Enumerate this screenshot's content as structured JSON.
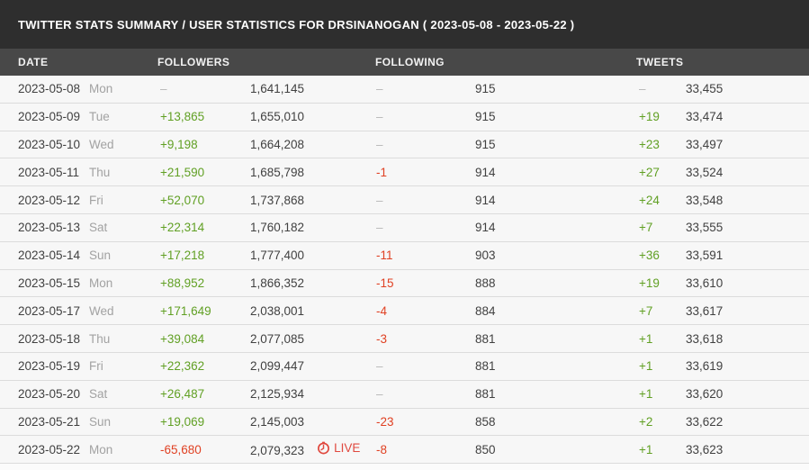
{
  "header": {
    "title": "TWITTER STATS SUMMARY / USER STATISTICS FOR DRSINANOGAN ( 2023-05-08 - 2023-05-22 )"
  },
  "table": {
    "columns": [
      "DATE",
      "FOLLOWERS",
      "FOLLOWING",
      "TWEETS"
    ],
    "live_label": "LIVE",
    "rows": [
      {
        "date": "2023-05-08",
        "day": "Mon",
        "followers_change": "–",
        "followers_total": "1,641,145",
        "following_change": "–",
        "following_total": "915",
        "tweets_change": "–",
        "tweets_total": "33,455",
        "live": false
      },
      {
        "date": "2023-05-09",
        "day": "Tue",
        "followers_change": "+13,865",
        "followers_total": "1,655,010",
        "following_change": "–",
        "following_total": "915",
        "tweets_change": "+19",
        "tweets_total": "33,474",
        "live": false
      },
      {
        "date": "2023-05-10",
        "day": "Wed",
        "followers_change": "+9,198",
        "followers_total": "1,664,208",
        "following_change": "–",
        "following_total": "915",
        "tweets_change": "+23",
        "tweets_total": "33,497",
        "live": false
      },
      {
        "date": "2023-05-11",
        "day": "Thu",
        "followers_change": "+21,590",
        "followers_total": "1,685,798",
        "following_change": "-1",
        "following_total": "914",
        "tweets_change": "+27",
        "tweets_total": "33,524",
        "live": false
      },
      {
        "date": "2023-05-12",
        "day": "Fri",
        "followers_change": "+52,070",
        "followers_total": "1,737,868",
        "following_change": "–",
        "following_total": "914",
        "tweets_change": "+24",
        "tweets_total": "33,548",
        "live": false
      },
      {
        "date": "2023-05-13",
        "day": "Sat",
        "followers_change": "+22,314",
        "followers_total": "1,760,182",
        "following_change": "–",
        "following_total": "914",
        "tweets_change": "+7",
        "tweets_total": "33,555",
        "live": false
      },
      {
        "date": "2023-05-14",
        "day": "Sun",
        "followers_change": "+17,218",
        "followers_total": "1,777,400",
        "following_change": "-11",
        "following_total": "903",
        "tweets_change": "+36",
        "tweets_total": "33,591",
        "live": false
      },
      {
        "date": "2023-05-15",
        "day": "Mon",
        "followers_change": "+88,952",
        "followers_total": "1,866,352",
        "following_change": "-15",
        "following_total": "888",
        "tweets_change": "+19",
        "tweets_total": "33,610",
        "live": false
      },
      {
        "date": "2023-05-17",
        "day": "Wed",
        "followers_change": "+171,649",
        "followers_total": "2,038,001",
        "following_change": "-4",
        "following_total": "884",
        "tweets_change": "+7",
        "tweets_total": "33,617",
        "live": false
      },
      {
        "date": "2023-05-18",
        "day": "Thu",
        "followers_change": "+39,084",
        "followers_total": "2,077,085",
        "following_change": "-3",
        "following_total": "881",
        "tweets_change": "+1",
        "tweets_total": "33,618",
        "live": false
      },
      {
        "date": "2023-05-19",
        "day": "Fri",
        "followers_change": "+22,362",
        "followers_total": "2,099,447",
        "following_change": "–",
        "following_total": "881",
        "tweets_change": "+1",
        "tweets_total": "33,619",
        "live": false
      },
      {
        "date": "2023-05-20",
        "day": "Sat",
        "followers_change": "+26,487",
        "followers_total": "2,125,934",
        "following_change": "–",
        "following_total": "881",
        "tweets_change": "+1",
        "tweets_total": "33,620",
        "live": false
      },
      {
        "date": "2023-05-21",
        "day": "Sun",
        "followers_change": "+19,069",
        "followers_total": "2,145,003",
        "following_change": "-23",
        "following_total": "858",
        "tweets_change": "+2",
        "tweets_total": "33,622",
        "live": false
      },
      {
        "date": "2023-05-22",
        "day": "Mon",
        "followers_change": "-65,680",
        "followers_total": "2,079,323",
        "following_change": "-8",
        "following_total": "850",
        "tweets_change": "+1",
        "tweets_total": "33,623",
        "live": true
      }
    ]
  },
  "colors": {
    "titlebar_bg": "#2e2e2e",
    "title_text": "#ffffff",
    "colheader_bg": "#484848",
    "colheader_text": "#f2f2f2",
    "row_bg": "#f7f7f7",
    "row_divider": "#dcdcdc",
    "page_bg": "#fbfbfb",
    "date_text": "#414141",
    "day_text": "#a2a2a2",
    "total_text": "#414141",
    "dash_text": "#b9b9b9",
    "positive": "#61a024",
    "negative": "#e04123",
    "live": "#e0493f"
  }
}
